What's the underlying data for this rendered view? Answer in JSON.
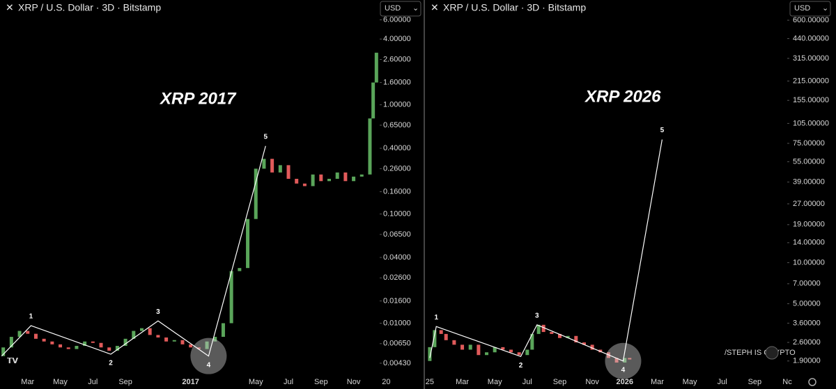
{
  "chart_data": [
    {
      "type": "candlestick",
      "title": "XRP / U.S. Dollar · 3D · Bitstamp",
      "currency": "USD",
      "annotation": "XRP 2017",
      "log_scale": true,
      "up_color": "#5aa55a",
      "down_color": "#e05a5a",
      "xlim": [
        0.3,
        23.6
      ],
      "ylim": [
        0.0033,
        6.6
      ],
      "xticks": [
        {
          "value": 2,
          "label": "Mar"
        },
        {
          "value": 4,
          "label": "May"
        },
        {
          "value": 6,
          "label": "Jul"
        },
        {
          "value": 8,
          "label": "Sep"
        },
        {
          "value": 12,
          "label": "2017"
        },
        {
          "value": 16,
          "label": "May"
        },
        {
          "value": 18,
          "label": "Jul"
        },
        {
          "value": 20,
          "label": "Sep"
        },
        {
          "value": 22,
          "label": "Nov"
        },
        {
          "value": 24,
          "label": "20"
        }
      ],
      "yticks": [
        {
          "value": 6,
          "label": "6.00000"
        },
        {
          "value": 4,
          "label": "4.00000"
        },
        {
          "value": 2.6,
          "label": "2.60000"
        },
        {
          "value": 1.6,
          "label": "1.60000"
        },
        {
          "value": 1,
          "label": "1.00000"
        },
        {
          "value": 0.65,
          "label": "0.65000"
        },
        {
          "value": 0.4,
          "label": "0.40000"
        },
        {
          "value": 0.26,
          "label": "0.26000"
        },
        {
          "value": 0.16,
          "label": "0.16000"
        },
        {
          "value": 0.1,
          "label": "0.10000"
        },
        {
          "value": 0.065,
          "label": "0.06500"
        },
        {
          "value": 0.04,
          "label": "0.04000"
        },
        {
          "value": 0.026,
          "label": "0.02600"
        },
        {
          "value": 0.016,
          "label": "0.01600"
        },
        {
          "value": 0.01,
          "label": "0.01000"
        },
        {
          "value": 0.0065,
          "label": "0.00650"
        },
        {
          "value": 0.0043,
          "label": "0.00430"
        }
      ],
      "candles": {
        "x": [
          0.5,
          1.0,
          1.5,
          2.0,
          2.5,
          3.0,
          3.5,
          4.0,
          4.5,
          5.0,
          5.5,
          6.0,
          6.5,
          7.0,
          7.5,
          8.0,
          8.5,
          9.0,
          9.5,
          10.0,
          10.5,
          11.0,
          11.5,
          12.0,
          12.5,
          13.0,
          13.5,
          14.0,
          14.5,
          15.0,
          15.5,
          16.0,
          16.5,
          17.0,
          17.5,
          18.0,
          18.5,
          19.0,
          19.5,
          20.0,
          20.5,
          21.0,
          21.5,
          22.0,
          22.5,
          23.0,
          23.2,
          23.4
        ],
        "open": [
          0.005,
          0.006,
          0.0075,
          0.0085,
          0.008,
          0.0072,
          0.0068,
          0.0064,
          0.006,
          0.0058,
          0.0062,
          0.0068,
          0.0066,
          0.006,
          0.0056,
          0.0062,
          0.0072,
          0.0085,
          0.009,
          0.0078,
          0.0074,
          0.0068,
          0.007,
          0.0064,
          0.006,
          0.0058,
          0.0068,
          0.0075,
          0.01,
          0.03,
          0.032,
          0.09,
          0.26,
          0.32,
          0.24,
          0.28,
          0.21,
          0.19,
          0.18,
          0.23,
          0.2,
          0.21,
          0.24,
          0.2,
          0.22,
          0.23,
          0.75,
          1.6
        ],
        "close": [
          0.006,
          0.0075,
          0.0085,
          0.008,
          0.0072,
          0.0068,
          0.0064,
          0.006,
          0.0058,
          0.0062,
          0.0068,
          0.0066,
          0.006,
          0.0056,
          0.0062,
          0.0072,
          0.0085,
          0.009,
          0.0078,
          0.0074,
          0.0068,
          0.007,
          0.0064,
          0.006,
          0.0058,
          0.0068,
          0.0075,
          0.01,
          0.03,
          0.032,
          0.09,
          0.26,
          0.32,
          0.24,
          0.28,
          0.21,
          0.19,
          0.18,
          0.23,
          0.2,
          0.21,
          0.24,
          0.2,
          0.22,
          0.23,
          0.75,
          1.6,
          3.0
        ]
      },
      "waves": {
        "labels": [
          null,
          "1",
          "2",
          "3",
          "4",
          "5"
        ],
        "x": [
          0.4,
          2.2,
          7.1,
          10.0,
          13.1,
          16.6
        ],
        "y": [
          0.005,
          0.0095,
          0.0052,
          0.0105,
          0.005,
          0.42
        ]
      }
    },
    {
      "type": "candlestick",
      "title": "XRP / U.S. Dollar · 3D · Bitstamp",
      "currency": "USD",
      "annotation": "XRP 2026",
      "watermark": "/STEPH IS CRYPTO",
      "log_scale": true,
      "up_color": "#5aa55a",
      "down_color": "#e05a5a",
      "xlim": [
        -0.21,
        22.0
      ],
      "ylim": [
        1.48,
        652
      ],
      "xticks": [
        {
          "value": 0,
          "label": "25"
        },
        {
          "value": 2,
          "label": "Mar"
        },
        {
          "value": 4,
          "label": "May"
        },
        {
          "value": 6,
          "label": "Jul"
        },
        {
          "value": 8,
          "label": "Sep"
        },
        {
          "value": 10,
          "label": "Nov"
        },
        {
          "value": 12,
          "label": "2026"
        },
        {
          "value": 14,
          "label": "Mar"
        },
        {
          "value": 16,
          "label": "May"
        },
        {
          "value": 18,
          "label": "Jul"
        },
        {
          "value": 20,
          "label": "Sep"
        },
        {
          "value": 22,
          "label": "Nc"
        }
      ],
      "yticks": [
        {
          "value": 600,
          "label": "600.00000"
        },
        {
          "value": 440,
          "label": "440.00000"
        },
        {
          "value": 315,
          "label": "315.00000"
        },
        {
          "value": 215,
          "label": "215.00000"
        },
        {
          "value": 155,
          "label": "155.00000"
        },
        {
          "value": 105,
          "label": "105.00000"
        },
        {
          "value": 75,
          "label": "75.00000"
        },
        {
          "value": 55,
          "label": "55.00000"
        },
        {
          "value": 39,
          "label": "39.00000"
        },
        {
          "value": 27,
          "label": "27.00000"
        },
        {
          "value": 19,
          "label": "19.00000"
        },
        {
          "value": 14,
          "label": "14.00000"
        },
        {
          "value": 10,
          "label": "10.00000"
        },
        {
          "value": 7,
          "label": "7.00000"
        },
        {
          "value": 5,
          "label": "5.00000"
        },
        {
          "value": 3.6,
          "label": "3.60000"
        },
        {
          "value": 2.6,
          "label": "2.60000"
        },
        {
          "value": 1.9,
          "label": "1.90000"
        }
      ],
      "candles": {
        "x": [
          0.0,
          0.3,
          0.7,
          1.0,
          1.5,
          2.0,
          2.5,
          3.0,
          3.5,
          4.0,
          4.5,
          5.0,
          5.5,
          6.0,
          6.3,
          6.7,
          7.0,
          7.5,
          8.0,
          8.5,
          9.0,
          9.5,
          10.0,
          10.5,
          11.0,
          11.5,
          12.0,
          12.3
        ],
        "open": [
          1.9,
          2.4,
          3.2,
          3.0,
          2.7,
          2.5,
          2.3,
          2.5,
          2.1,
          2.2,
          2.4,
          2.3,
          2.2,
          2.1,
          2.3,
          3.0,
          3.5,
          3.1,
          3.0,
          2.8,
          2.9,
          2.6,
          2.5,
          2.3,
          2.2,
          2.0,
          1.85,
          2.0
        ],
        "close": [
          2.4,
          3.2,
          3.0,
          2.7,
          2.5,
          2.3,
          2.5,
          2.1,
          2.2,
          2.4,
          2.3,
          2.2,
          2.1,
          2.3,
          3.0,
          3.5,
          3.1,
          3.0,
          2.8,
          2.9,
          2.6,
          2.5,
          2.3,
          2.2,
          2.0,
          1.85,
          2.0,
          1.95
        ]
      },
      "waves": {
        "labels": [
          null,
          "1",
          "2",
          "3",
          "4",
          "5"
        ],
        "x": [
          0.0,
          0.4,
          5.6,
          6.6,
          11.9,
          14.3
        ],
        "y": [
          2.0,
          3.4,
          2.05,
          3.5,
          1.9,
          80
        ]
      }
    }
  ]
}
